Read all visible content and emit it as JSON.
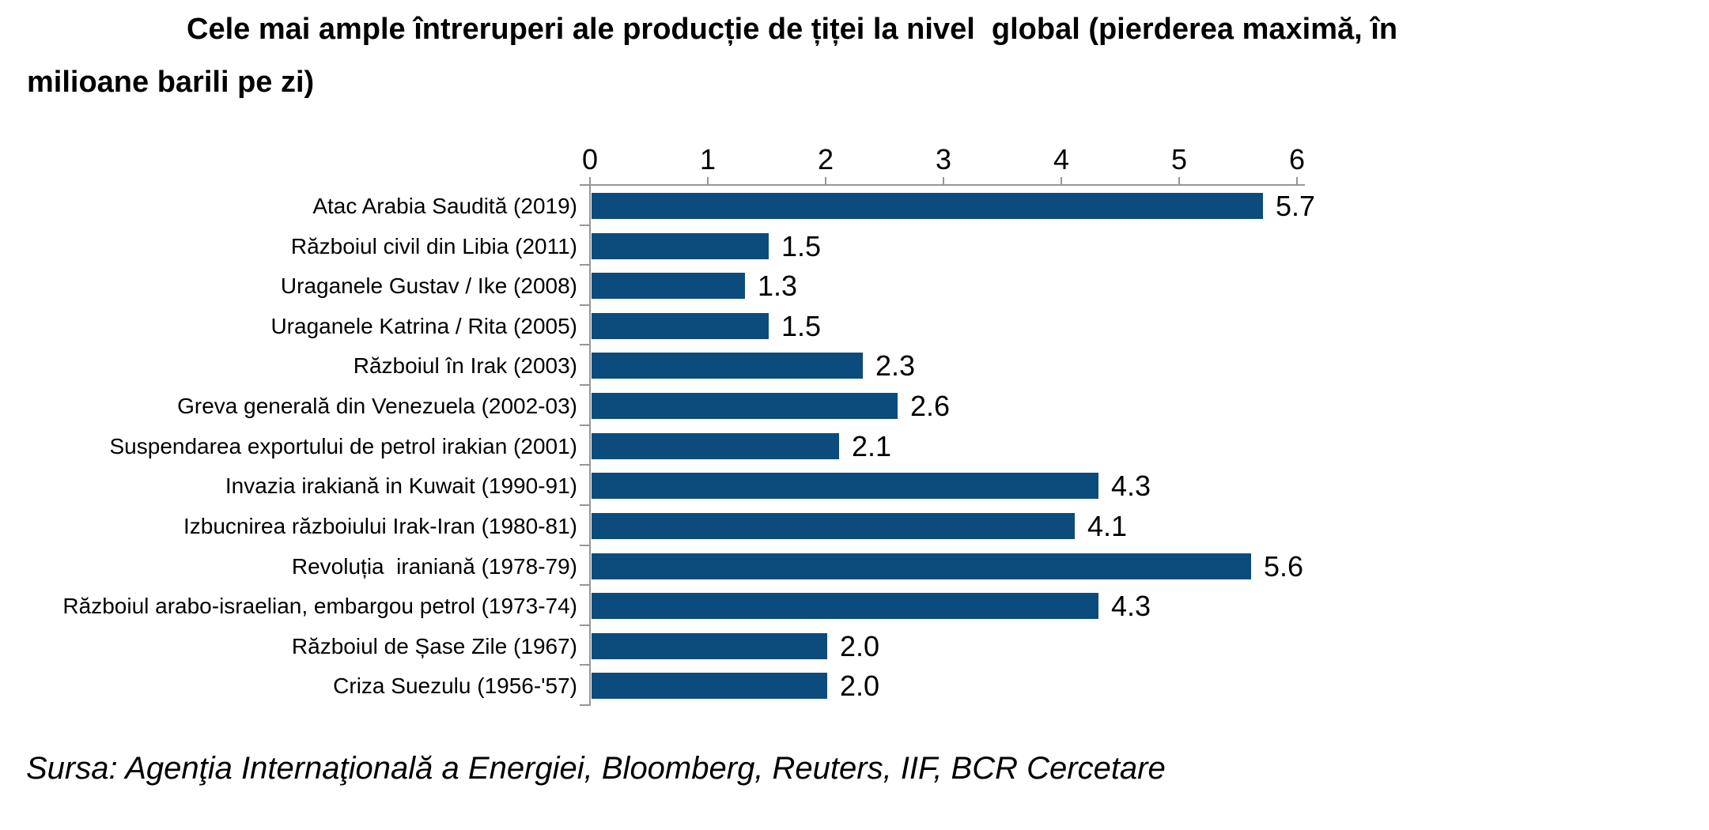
{
  "header": {
    "title": "Cele mai ample întreruperi ale producție de țiței la nivel  global (pierderea maximă, în\nmilioane barili pe zi)"
  },
  "footer": {
    "source": "Sursa: Agenţia Internaţională a Energiei, Bloomberg, Reuters, IIF, BCR Cercetare"
  },
  "colors": {
    "bar": "#0C4C7C",
    "axis": "#969696",
    "text": "#000000",
    "background": "#FFFFFF"
  },
  "chart_data": {
    "type": "bar",
    "orientation": "horizontal",
    "title": "Cele mai ample întreruperi ale producție de țiței la nivel global (pierderea maximă, în milioane barili pe zi)",
    "categories": [
      "Atac Arabia Saudită (2019)",
      "Războiul civil din Libia (2011)",
      "Uraganele Gustav / Ike (2008)",
      "Uraganele Katrina / Rita (2005)",
      "Războiul în Irak (2003)",
      "Greva generală din Venezuela (2002-03)",
      "Suspendarea exportului de petrol irakian (2001)",
      "Invazia irakiană in Kuwait (1990-91)",
      "Izbucnirea războiului Irak-Iran (1980-81)",
      "Revoluția  iraniană (1978-79)",
      "Războiul arabo-israelian, embargou petrol (1973-74)",
      "Războiul de Șase Zile (1967)",
      "Criza Suezulu (1956-'57)"
    ],
    "values": [
      5.7,
      1.5,
      1.3,
      1.5,
      2.3,
      2.6,
      2.1,
      4.3,
      4.1,
      5.6,
      4.3,
      2.0,
      2.0
    ],
    "value_labels": [
      "5.7",
      "1.5",
      "1.3",
      "1.5",
      "2.3",
      "2.6",
      "2.1",
      "4.3",
      "4.1",
      "5.6",
      "4.3",
      "2.0",
      "2.0"
    ],
    "xlabel": "",
    "ylabel": "",
    "xlim": [
      0,
      6
    ],
    "x_ticks": [
      "0",
      "1",
      "2",
      "3",
      "4",
      "5",
      "6"
    ],
    "axis_position": "top",
    "grid": false,
    "legend": "none",
    "bar_color": "#0C4C7C"
  }
}
